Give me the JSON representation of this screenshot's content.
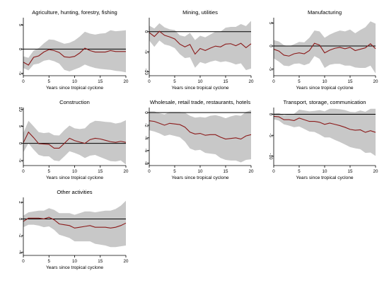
{
  "chart_data": [
    {
      "type": "line",
      "title": "Agriculture, hunting, forestry, fishing",
      "xlabel": "Years since tropical cyclone",
      "ylabel": "",
      "xlim": [
        0,
        20
      ],
      "ylim": [
        -5.5,
        6.5
      ],
      "xticks": [
        0,
        5,
        10,
        15,
        20
      ],
      "yticks": [
        5,
        0,
        -5
      ],
      "ytick_labels": [
        "5",
        "0",
        "-5"
      ],
      "x": [
        0,
        1,
        2,
        3,
        4,
        5,
        6,
        7,
        8,
        9,
        10,
        11,
        12,
        13,
        14,
        15,
        16,
        17,
        18,
        19,
        20
      ],
      "series": [
        {
          "role": "estimate",
          "color": "#8b1a1a",
          "values": [
            -2.7,
            -3.3,
            -1.7,
            -1.4,
            -0.6,
            -0.1,
            -0.3,
            -0.7,
            -1.6,
            -1.7,
            -1.5,
            -0.8,
            0.2,
            -0.3,
            -0.6,
            -0.6,
            -0.6,
            -0.3,
            -0.5,
            -0.5,
            -0.5
          ]
        },
        {
          "role": "ci_lower",
          "color": "#c8c8c8",
          "values": [
            -3.9,
            -4.4,
            -3.2,
            -3.0,
            -2.4,
            -2.2,
            -2.5,
            -3.0,
            -4.3,
            -4.6,
            -4.2,
            -3.8,
            -3.2,
            -3.6,
            -3.9,
            -4.1,
            -4.2,
            -4.3,
            -4.5,
            -4.6,
            -4.8
          ]
        },
        {
          "role": "ci_upper",
          "color": "#c8c8c8",
          "values": [
            -1.5,
            -1.8,
            -0.3,
            0.2,
            1.2,
            2.0,
            1.9,
            1.5,
            1.1,
            1.3,
            1.8,
            2.6,
            3.6,
            3.2,
            3.0,
            3.2,
            3.3,
            3.9,
            3.7,
            3.8,
            3.9
          ]
        }
      ],
      "zero_line": true,
      "grid": false
    },
    {
      "type": "line",
      "title": "Mining, utilities",
      "xlabel": "Years since tropical cyclone",
      "ylabel": "",
      "xlim": [
        0,
        20
      ],
      "ylim": [
        -11,
        3.5
      ],
      "xticks": [
        0,
        5,
        10,
        15,
        20
      ],
      "yticks": [
        0,
        -5,
        -10
      ],
      "ytick_labels": [
        "0",
        "-5",
        "-10"
      ],
      "x": [
        0,
        1,
        2,
        3,
        4,
        5,
        6,
        7,
        8,
        9,
        10,
        11,
        12,
        13,
        14,
        15,
        16,
        17,
        18,
        19,
        20
      ],
      "series": [
        {
          "role": "estimate",
          "color": "#8b1a1a",
          "values": [
            -0.2,
            -1.2,
            0.1,
            -0.9,
            -1.3,
            -1.8,
            -3.1,
            -3.8,
            -3.2,
            -5.6,
            -4.2,
            -4.7,
            -4.1,
            -3.6,
            -3.8,
            -3.1,
            -3.0,
            -3.5,
            -2.9,
            -4.0,
            -3.0
          ]
        },
        {
          "role": "ci_lower",
          "color": "#c8c8c8",
          "values": [
            -2.2,
            -3.8,
            -2.2,
            -3.2,
            -3.5,
            -4.1,
            -5.6,
            -6.6,
            -6.4,
            -9.0,
            -7.6,
            -8.0,
            -7.5,
            -7.2,
            -7.6,
            -7.4,
            -7.7,
            -8.2,
            -7.9,
            -9.6,
            -9.2
          ]
        },
        {
          "role": "ci_upper",
          "color": "#c8c8c8",
          "values": [
            1.5,
            0.8,
            2.1,
            1.1,
            0.6,
            0.4,
            -0.9,
            -1.2,
            -0.3,
            -2.1,
            -1.0,
            -1.4,
            -0.7,
            0.0,
            0.0,
            1.0,
            1.2,
            1.2,
            1.9,
            1.4,
            2.7
          ]
        }
      ],
      "zero_line": true,
      "grid": false
    },
    {
      "type": "line",
      "title": "Manufacturing",
      "xlabel": "Years since tropical cyclone",
      "ylabel": "",
      "xlim": [
        0,
        20
      ],
      "ylim": [
        -6.5,
        6.2
      ],
      "xticks": [
        0,
        5,
        10,
        15,
        20
      ],
      "yticks": [
        5,
        0,
        -5
      ],
      "ytick_labels": [
        "5",
        "0",
        "-5"
      ],
      "x": [
        0,
        1,
        2,
        3,
        4,
        5,
        6,
        7,
        8,
        9,
        10,
        11,
        12,
        13,
        14,
        15,
        16,
        17,
        18,
        19,
        20
      ],
      "series": [
        {
          "role": "estimate",
          "color": "#8b1a1a",
          "values": [
            -0.7,
            -1.1,
            -2.0,
            -2.2,
            -1.7,
            -1.5,
            -1.7,
            -1.0,
            0.6,
            0.2,
            -1.5,
            -0.9,
            -0.5,
            -0.3,
            -0.6,
            -0.3,
            -1.0,
            -0.7,
            -0.4,
            0.5,
            -0.6
          ]
        },
        {
          "role": "ci_lower",
          "color": "#c8c8c8",
          "values": [
            -2.7,
            -3.4,
            -4.3,
            -4.4,
            -3.9,
            -3.8,
            -4.2,
            -3.8,
            -2.2,
            -2.8,
            -4.8,
            -4.1,
            -3.9,
            -3.9,
            -4.3,
            -4.3,
            -4.7,
            -4.8,
            -4.8,
            -4.3,
            -6.0
          ]
        },
        {
          "role": "ci_upper",
          "color": "#c8c8c8",
          "values": [
            1.3,
            1.0,
            0.2,
            -0.1,
            0.4,
            0.9,
            0.8,
            1.8,
            3.4,
            3.2,
            1.8,
            2.5,
            3.0,
            3.4,
            3.2,
            3.6,
            2.8,
            3.5,
            4.1,
            5.4,
            4.9
          ]
        }
      ],
      "zero_line": true,
      "grid": false
    },
    {
      "type": "line",
      "title": "Construction",
      "xlabel": "Years since tropical cyclone",
      "ylabel": "",
      "xlim": [
        0,
        20
      ],
      "ylim": [
        -6.5,
        10.5
      ],
      "xticks": [
        0,
        5,
        10,
        15,
        20
      ],
      "yticks": [
        10,
        5,
        0,
        -5
      ],
      "ytick_labels": [
        "10",
        "5",
        "0",
        "-5"
      ],
      "x": [
        0,
        1,
        2,
        3,
        4,
        5,
        6,
        7,
        8,
        9,
        10,
        11,
        12,
        13,
        14,
        15,
        16,
        17,
        18,
        19,
        20
      ],
      "series": [
        {
          "role": "estimate",
          "color": "#8b1a1a",
          "values": [
            0.2,
            3.3,
            1.7,
            -0.1,
            -0.2,
            -0.3,
            -1.4,
            -1.4,
            0.0,
            1.5,
            0.8,
            0.4,
            0.0,
            1.1,
            1.5,
            1.3,
            0.9,
            0.5,
            0.3,
            0.6,
            0.3
          ]
        },
        {
          "role": "ci_lower",
          "color": "#c8c8c8",
          "values": [
            -2.6,
            0.0,
            -1.8,
            -3.4,
            -3.8,
            -3.8,
            -5.0,
            -5.2,
            -3.8,
            -2.3,
            -2.8,
            -3.4,
            -4.3,
            -3.6,
            -3.4,
            -4.0,
            -4.6,
            -5.2,
            -5.3,
            -5.0,
            -6.2
          ]
        },
        {
          "role": "ci_upper",
          "color": "#c8c8c8",
          "values": [
            3.0,
            6.6,
            5.0,
            3.3,
            3.0,
            3.2,
            2.4,
            2.3,
            3.9,
            5.2,
            4.4,
            4.2,
            4.4,
            5.9,
            6.6,
            6.5,
            6.3,
            6.2,
            5.8,
            6.1,
            6.8
          ]
        }
      ],
      "zero_line": true,
      "grid": false
    },
    {
      "type": "line",
      "title": "Wholesale, retail trade, restaurants, hotels",
      "xlabel": "Years since tropical cyclone",
      "ylabel": "",
      "xlim": [
        0,
        20
      ],
      "ylim": [
        -8.4,
        0.8
      ],
      "xticks": [
        0,
        5,
        10,
        15,
        20
      ],
      "yticks": [
        0,
        -2,
        -4,
        -6,
        -8
      ],
      "ytick_labels": [
        "0",
        "-2",
        "-4",
        "-6",
        "-8"
      ],
      "x": [
        0,
        1,
        2,
        3,
        4,
        5,
        6,
        7,
        8,
        9,
        10,
        11,
        12,
        13,
        14,
        15,
        16,
        17,
        18,
        19,
        20
      ],
      "series": [
        {
          "role": "estimate",
          "color": "#8b1a1a",
          "values": [
            -1.3,
            -1.4,
            -1.7,
            -2.0,
            -1.7,
            -1.8,
            -1.9,
            -2.3,
            -3.1,
            -3.4,
            -3.3,
            -3.6,
            -3.5,
            -3.5,
            -3.9,
            -4.2,
            -4.1,
            -4.0,
            -4.2,
            -3.7,
            -3.5
          ]
        },
        {
          "role": "ci_lower",
          "color": "#c8c8c8",
          "values": [
            -2.8,
            -3.0,
            -3.3,
            -3.7,
            -3.5,
            -3.7,
            -3.9,
            -4.6,
            -5.7,
            -6.0,
            -5.9,
            -6.4,
            -6.5,
            -6.6,
            -7.2,
            -7.5,
            -7.6,
            -7.6,
            -7.9,
            -7.5,
            -7.4
          ]
        },
        {
          "role": "ci_upper",
          "color": "#c8c8c8",
          "values": [
            0.2,
            0.2,
            -0.1,
            -0.3,
            0.1,
            0.1,
            0.1,
            0.0,
            -0.5,
            -0.8,
            -0.7,
            -0.8,
            -0.5,
            -0.4,
            -0.6,
            -0.9,
            -0.6,
            -0.4,
            -0.5,
            0.1,
            0.4
          ]
        }
      ],
      "zero_line": true,
      "grid": false
    },
    {
      "type": "line",
      "title": "Transport, storage, communication",
      "xlabel": "Years since tropical cyclone",
      "ylabel": "",
      "xlim": [
        0,
        20
      ],
      "ylim": [
        -12.2,
        1.6
      ],
      "xticks": [
        0,
        5,
        10,
        15,
        20
      ],
      "yticks": [
        0,
        -5,
        -10
      ],
      "ytick_labels": [
        "0",
        "-5",
        "-10"
      ],
      "x": [
        0,
        1,
        2,
        3,
        4,
        5,
        6,
        7,
        8,
        9,
        10,
        11,
        12,
        13,
        14,
        15,
        16,
        17,
        18,
        19,
        20
      ],
      "series": [
        {
          "role": "estimate",
          "color": "#8b1a1a",
          "values": [
            -0.5,
            -0.6,
            -1.3,
            -1.3,
            -1.5,
            -0.9,
            -1.3,
            -1.7,
            -1.7,
            -1.9,
            -2.4,
            -2.1,
            -2.4,
            -2.7,
            -3.1,
            -3.6,
            -3.8,
            -3.7,
            -4.3,
            -3.9,
            -4.3
          ]
        },
        {
          "role": "ci_lower",
          "color": "#c8c8c8",
          "values": [
            -1.2,
            -1.5,
            -2.4,
            -2.7,
            -3.1,
            -2.9,
            -3.5,
            -4.1,
            -4.2,
            -4.8,
            -5.5,
            -5.5,
            -6.1,
            -6.6,
            -7.2,
            -7.8,
            -8.1,
            -8.3,
            -9.2,
            -9.1,
            -9.9
          ]
        },
        {
          "role": "ci_upper",
          "color": "#c8c8c8",
          "values": [
            0.2,
            0.3,
            -0.2,
            0.0,
            0.1,
            1.1,
            0.9,
            0.7,
            0.8,
            1.0,
            0.7,
            1.3,
            1.3,
            1.2,
            1.0,
            0.6,
            0.5,
            0.9,
            0.6,
            1.3,
            1.3
          ]
        }
      ],
      "zero_line": true,
      "grid": false
    },
    {
      "type": "line",
      "title": "Other activities",
      "xlabel": "Years since tropical cyclone",
      "ylabel": "",
      "xlim": [
        0,
        20
      ],
      "ylim": [
        -4.4,
        2.6
      ],
      "xticks": [
        0,
        5,
        10,
        15,
        20
      ],
      "yticks": [
        2,
        0,
        -2,
        -4
      ],
      "ytick_labels": [
        "2",
        "0",
        "-2",
        "-4"
      ],
      "x": [
        0,
        1,
        2,
        3,
        4,
        5,
        6,
        7,
        8,
        9,
        10,
        11,
        12,
        13,
        14,
        15,
        16,
        17,
        18,
        19,
        20
      ],
      "series": [
        {
          "role": "estimate",
          "color": "#8b1a1a",
          "values": [
            -0.3,
            0.1,
            0.1,
            0.1,
            0.0,
            0.2,
            -0.1,
            -0.6,
            -0.7,
            -0.8,
            -1.1,
            -1.0,
            -0.9,
            -0.8,
            -1.0,
            -1.0,
            -1.0,
            -1.1,
            -1.0,
            -0.8,
            -0.5
          ]
        },
        {
          "role": "ci_lower",
          "color": "#c8c8c8",
          "values": [
            -1.0,
            -0.7,
            -0.7,
            -0.8,
            -1.0,
            -0.9,
            -1.3,
            -1.9,
            -2.1,
            -2.3,
            -2.7,
            -2.7,
            -2.7,
            -2.7,
            -3.0,
            -3.1,
            -3.2,
            -3.4,
            -3.4,
            -3.3,
            -3.2
          ]
        },
        {
          "role": "ci_upper",
          "color": "#c8c8c8",
          "values": [
            0.4,
            0.8,
            0.9,
            1.0,
            1.0,
            1.3,
            1.1,
            0.7,
            0.7,
            0.7,
            0.5,
            0.7,
            0.9,
            0.9,
            0.8,
            0.9,
            1.0,
            1.0,
            1.2,
            1.6,
            2.2
          ]
        }
      ],
      "zero_line": true,
      "grid": false
    }
  ]
}
